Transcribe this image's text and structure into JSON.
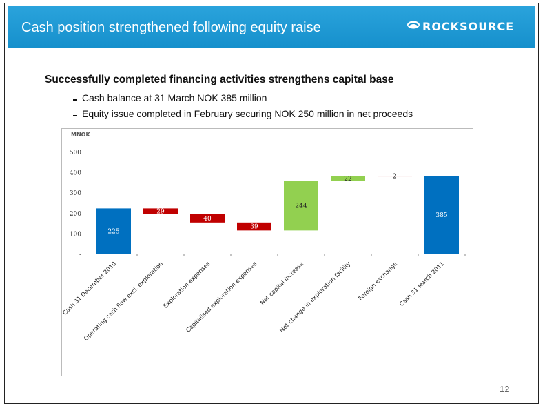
{
  "slide": {
    "title": "Cash position strengthened following equity raise",
    "logo": "ROCKSOURCE",
    "heading": "Successfully completed financing activities strengthens capital base",
    "bullets": [
      "Cash balance at 31 March NOK 385 million",
      "Equity issue completed in February securing NOK 250 million in net proceeds"
    ],
    "page_number": "12"
  },
  "chart_data": {
    "type": "waterfall",
    "y_label": "MNOK",
    "categories": [
      "Cash 31 December 2010",
      "Operating cash flow excl. exploration",
      "Exploration expenses",
      "Capitalised exploration expenses",
      "Net capital increase",
      "Net change in exploration facility",
      "Foreign exchange",
      "Cash 31 March 2011"
    ],
    "values": [
      225,
      -29,
      -40,
      -39,
      244,
      22,
      2,
      385
    ],
    "value_labels": [
      "225",
      "29",
      "40",
      "39",
      "244",
      "22",
      "2",
      "385"
    ],
    "colors": [
      "#0070c0",
      "#c00000",
      "#c00000",
      "#c00000",
      "#92d050",
      "#92d050",
      "#c00000",
      "#0070c0"
    ],
    "ylim": [
      0,
      500
    ],
    "yticks": [
      {
        "value": 0,
        "label": "-"
      },
      100,
      200,
      300,
      400,
      500
    ]
  }
}
